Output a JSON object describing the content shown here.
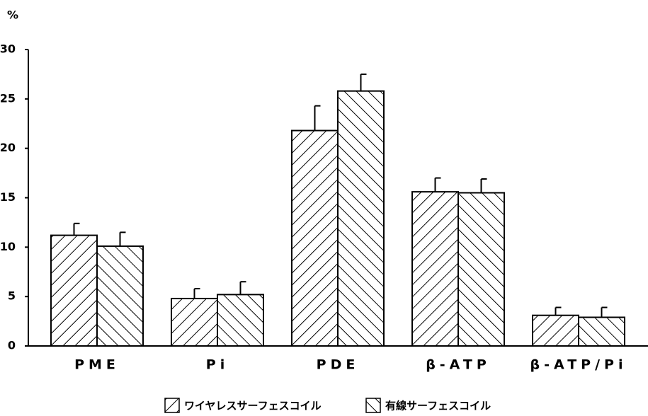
{
  "chart_data": {
    "type": "bar",
    "y_label": "%",
    "categories": [
      "PME",
      "Pi",
      "PDE",
      "β-ATP",
      "β-ATP/Pi"
    ],
    "series": [
      {
        "name": "ワイヤレスサーフェスコイル",
        "color": "#000000",
        "values": [
          11.2,
          4.8,
          21.8,
          15.6,
          3.1
        ],
        "errors": [
          1.2,
          1.0,
          2.5,
          1.4,
          0.8
        ]
      },
      {
        "name": "有線サーフェスコイル",
        "color": "#000000",
        "values": [
          10.1,
          5.2,
          25.8,
          15.5,
          2.9
        ],
        "errors": [
          1.4,
          1.3,
          1.7,
          1.4,
          1.0
        ]
      }
    ],
    "ylim": [
      0,
      30
    ],
    "yticks": [
      0,
      5,
      10,
      15,
      20,
      25,
      30
    ],
    "grid": false
  }
}
